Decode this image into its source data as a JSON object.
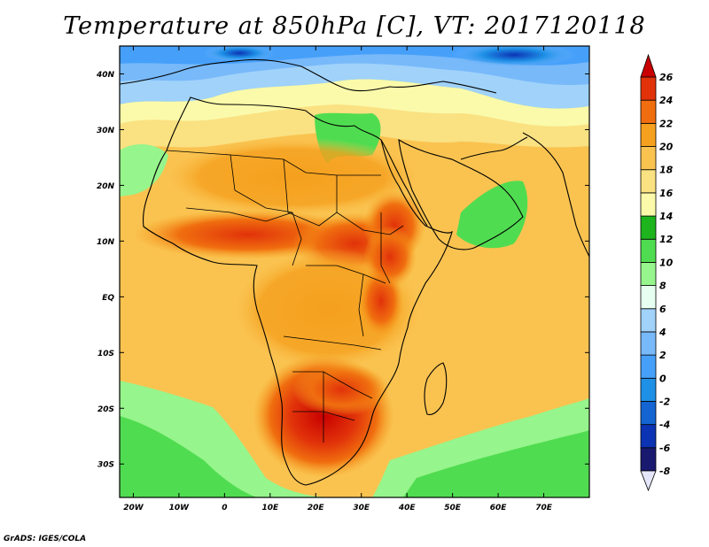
{
  "title": "Temperature at 850hPa [C], VT: 2017120118",
  "credit": "GrADS: IGES/COLA",
  "map": {
    "lat_range": [
      -36,
      45
    ],
    "lon_range": [
      -23,
      80
    ],
    "lat_ticks": [
      {
        "v": 40,
        "label": "40N"
      },
      {
        "v": 30,
        "label": "30N"
      },
      {
        "v": 20,
        "label": "20N"
      },
      {
        "v": 10,
        "label": "10N"
      },
      {
        "v": 0,
        "label": "EQ"
      },
      {
        "v": -10,
        "label": "10S"
      },
      {
        "v": -20,
        "label": "20S"
      },
      {
        "v": -30,
        "label": "30S"
      }
    ],
    "lon_ticks": [
      {
        "v": -20,
        "label": "20W"
      },
      {
        "v": -10,
        "label": "10W"
      },
      {
        "v": 0,
        "label": "0"
      },
      {
        "v": 10,
        "label": "10E"
      },
      {
        "v": 20,
        "label": "20E"
      },
      {
        "v": 30,
        "label": "30E"
      },
      {
        "v": 40,
        "label": "40E"
      },
      {
        "v": 50,
        "label": "50E"
      },
      {
        "v": 60,
        "label": "60E"
      },
      {
        "v": 70,
        "label": "70E"
      }
    ]
  },
  "colorbar": {
    "levels": [
      -8,
      -6,
      -4,
      -2,
      0,
      2,
      4,
      6,
      8,
      10,
      12,
      14,
      16,
      18,
      20,
      22,
      24,
      26
    ],
    "colors": [
      "#e6e6fa",
      "#191970",
      "#0c33b4",
      "#1464d2",
      "#1e90e6",
      "#46a0fa",
      "#78b9fa",
      "#a0d2fa",
      "#e6fff0",
      "#96f58c",
      "#50dc50",
      "#1eb41e",
      "#fafaaa",
      "#fae182",
      "#fac350",
      "#f5a01e",
      "#f06e0f",
      "#e1320a",
      "#c80000"
    ]
  }
}
